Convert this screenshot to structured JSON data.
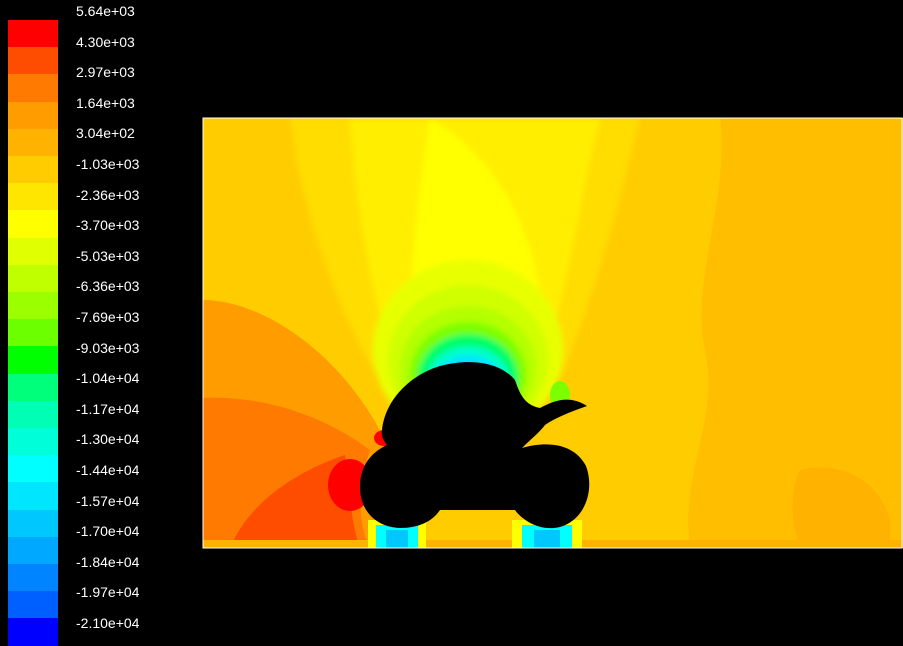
{
  "chart_data": {
    "type": "heatmap",
    "colormap": [
      "#ff0000",
      "#ff4d00",
      "#ff7a00",
      "#ff9c00",
      "#ffb200",
      "#ffcc00",
      "#ffe600",
      "#ffff00",
      "#e0ff00",
      "#c0ff00",
      "#9cff00",
      "#6cff00",
      "#00ff00",
      "#00ff7a",
      "#00ffb4",
      "#00ffd8",
      "#00ffff",
      "#00e6ff",
      "#00c8ff",
      "#00a8ff",
      "#0084ff",
      "#0060ff",
      "#0000ff"
    ],
    "colorbar_labels": [
      "5.64e+03",
      "4.30e+03",
      "2.97e+03",
      "1.64e+03",
      "3.04e+02",
      "-1.03e+03",
      "-2.36e+03",
      "-3.70e+03",
      "-5.03e+03",
      "-6.36e+03",
      "-7.69e+03",
      "-9.03e+03",
      "-1.04e+04",
      "-1.17e+04",
      "-1.30e+04",
      "-1.44e+04",
      "-1.57e+04",
      "-1.70e+04",
      "-1.84e+04",
      "-1.97e+04",
      "-2.10e+04"
    ],
    "range": [
      -21000,
      5640
    ],
    "legend_position": "left",
    "body_color": "#000000",
    "background_color": "#000000",
    "domain_border_color": "#ffffff"
  }
}
